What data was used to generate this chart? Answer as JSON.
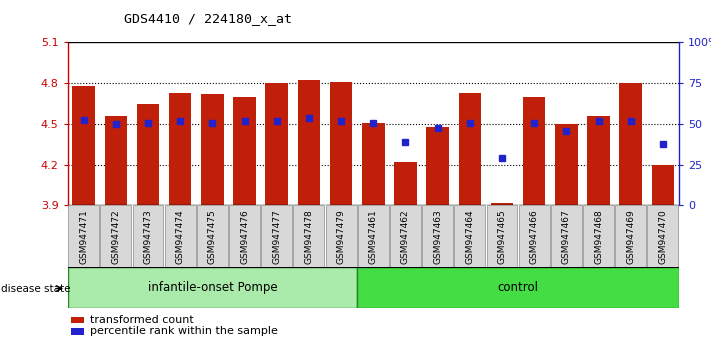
{
  "title": "GDS4410 / 224180_x_at",
  "samples": [
    "GSM947471",
    "GSM947472",
    "GSM947473",
    "GSM947474",
    "GSM947475",
    "GSM947476",
    "GSM947477",
    "GSM947478",
    "GSM947479",
    "GSM947461",
    "GSM947462",
    "GSM947463",
    "GSM947464",
    "GSM947465",
    "GSM947466",
    "GSM947467",
    "GSM947468",
    "GSM947469",
    "GSM947470"
  ],
  "bar_values": [
    4.78,
    4.56,
    4.65,
    4.73,
    4.72,
    4.7,
    4.8,
    4.82,
    4.81,
    4.51,
    4.22,
    4.48,
    4.73,
    3.92,
    4.7,
    4.5,
    4.56,
    4.8,
    4.2
  ],
  "percentile_values": [
    4.53,
    4.5,
    4.51,
    4.52,
    4.51,
    4.52,
    4.52,
    4.54,
    4.52,
    4.51,
    4.37,
    4.47,
    4.51,
    4.25,
    4.51,
    4.45,
    4.52,
    4.52,
    4.35
  ],
  "ymin": 3.9,
  "ymax": 5.1,
  "yticks_left": [
    3.9,
    4.2,
    4.5,
    4.8,
    5.1
  ],
  "yticks_right_vals": [
    0,
    25,
    50,
    75,
    100
  ],
  "yticks_right_labels": [
    "0",
    "25",
    "50",
    "75",
    "100%"
  ],
  "bar_color": "#C0200A",
  "percentile_color": "#2222CC",
  "group1_label": "infantile-onset Pompe",
  "group2_label": "control",
  "group1_color": "#AAEAAA",
  "group2_color": "#44DD44",
  "group1_count": 9,
  "group2_count": 10,
  "disease_state_label": "disease state",
  "legend_bar_label": "transformed count",
  "legend_percentile_label": "percentile rank within the sample",
  "grid_vals": [
    4.2,
    4.5,
    4.8
  ],
  "bar_width": 0.7
}
